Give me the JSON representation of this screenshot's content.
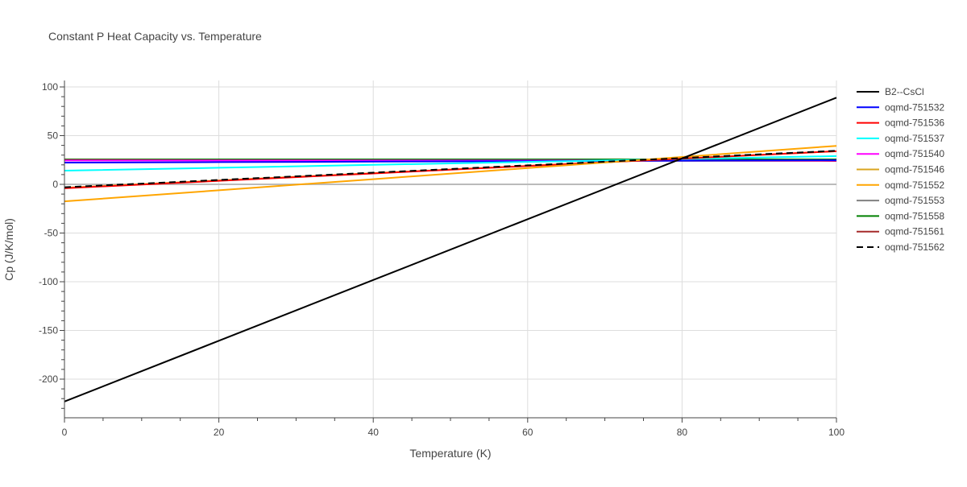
{
  "chart_data": {
    "type": "line",
    "title": "Constant P Heat Capacity vs. Temperature",
    "xlabel": "Temperature (K)",
    "ylabel": "Cp (J/K/mol)",
    "xlim": [
      0,
      100
    ],
    "ylim": [
      -240,
      106
    ],
    "xticks": [
      0,
      20,
      40,
      60,
      80,
      100
    ],
    "yticks": [
      -200,
      -150,
      -100,
      -50,
      0,
      50,
      100
    ],
    "grid": true,
    "legend": "right",
    "x": [
      0,
      20,
      40,
      60,
      80,
      100
    ],
    "series": [
      {
        "name": "B2--CsCl",
        "color": "#000000",
        "dash": false,
        "values": [
          -223,
          -160.6,
          -98.2,
          -35.8,
          26.6,
          89
        ]
      },
      {
        "name": "oqmd-751532",
        "color": "#0000ff",
        "dash": false,
        "values": [
          22.3,
          22.8,
          23.3,
          23.8,
          24.3,
          24.8
        ]
      },
      {
        "name": "oqmd-751536",
        "color": "#ff0000",
        "dash": false,
        "values": [
          -4,
          3.6,
          11.2,
          18.8,
          26.4,
          34
        ]
      },
      {
        "name": "oqmd-751537",
        "color": "#00ffff",
        "dash": false,
        "values": [
          14,
          17,
          20,
          23,
          26,
          29
        ]
      },
      {
        "name": "oqmd-751540",
        "color": "#ff00ff",
        "dash": false,
        "values": [
          24.5,
          24.5,
          24.5,
          24.5,
          24.5,
          24.5
        ]
      },
      {
        "name": "oqmd-751546",
        "color": "#daa520",
        "dash": false,
        "values": [
          -3.5,
          4,
          11.5,
          19,
          26.5,
          34
        ]
      },
      {
        "name": "oqmd-751552",
        "color": "#ffa500",
        "dash": false,
        "values": [
          -17.5,
          -6.1,
          5.3,
          16.7,
          28.1,
          39.5
        ]
      },
      {
        "name": "oqmd-751553",
        "color": "#808080",
        "dash": false,
        "values": [
          25.5,
          25.5,
          25.5,
          25.5,
          25.5,
          25.5
        ]
      },
      {
        "name": "oqmd-751558",
        "color": "#008000",
        "dash": false,
        "values": [
          25.6,
          25.6,
          25.6,
          25.6,
          25.6,
          25.6
        ]
      },
      {
        "name": "oqmd-751561",
        "color": "#a52a2a",
        "dash": false,
        "values": [
          25,
          24.8,
          24.6,
          24.4,
          24.2,
          24
        ]
      },
      {
        "name": "oqmd-751562",
        "color": "#000000",
        "dash": true,
        "values": [
          -3,
          4.5,
          12,
          19.5,
          27,
          34.5
        ]
      }
    ]
  }
}
